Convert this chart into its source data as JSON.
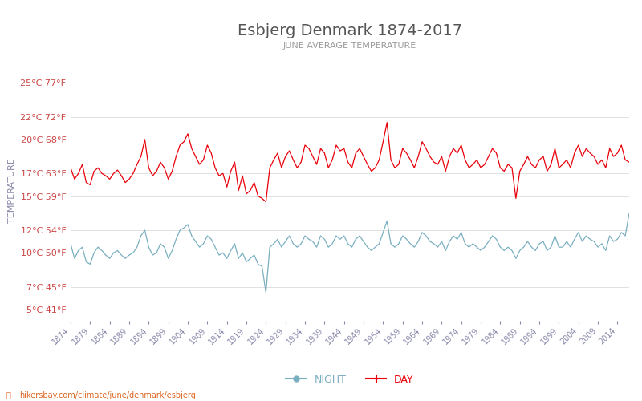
{
  "title": "Esbjerg Denmark 1874-2017",
  "subtitle": "JUNE AVERAGE TEMPERATURE",
  "ylabel": "TEMPERATURE",
  "url_text": "hikersbay.com/climate/june/denmark/esbjerg",
  "years": [
    1874,
    1875,
    1876,
    1877,
    1878,
    1879,
    1880,
    1881,
    1882,
    1883,
    1884,
    1885,
    1886,
    1887,
    1888,
    1889,
    1890,
    1891,
    1892,
    1893,
    1894,
    1895,
    1896,
    1897,
    1898,
    1899,
    1900,
    1901,
    1902,
    1903,
    1904,
    1905,
    1906,
    1907,
    1908,
    1909,
    1910,
    1911,
    1912,
    1913,
    1914,
    1915,
    1916,
    1917,
    1918,
    1919,
    1920,
    1921,
    1922,
    1923,
    1924,
    1925,
    1926,
    1927,
    1928,
    1929,
    1930,
    1931,
    1932,
    1933,
    1934,
    1935,
    1936,
    1937,
    1938,
    1939,
    1940,
    1941,
    1942,
    1943,
    1944,
    1945,
    1946,
    1947,
    1948,
    1949,
    1950,
    1951,
    1952,
    1953,
    1954,
    1955,
    1956,
    1957,
    1958,
    1959,
    1960,
    1961,
    1962,
    1963,
    1964,
    1965,
    1966,
    1967,
    1968,
    1969,
    1970,
    1971,
    1972,
    1973,
    1974,
    1975,
    1976,
    1977,
    1978,
    1979,
    1980,
    1981,
    1982,
    1983,
    1984,
    1985,
    1986,
    1987,
    1988,
    1989,
    1990,
    1991,
    1992,
    1993,
    1994,
    1995,
    1996,
    1997,
    1998,
    1999,
    2000,
    2001,
    2002,
    2003,
    2004,
    2005,
    2006,
    2007,
    2008,
    2009,
    2010,
    2011,
    2012,
    2013,
    2014,
    2015,
    2016,
    2017
  ],
  "day_temps": [
    17.5,
    16.5,
    17.0,
    17.8,
    16.2,
    16.0,
    17.2,
    17.5,
    17.0,
    16.8,
    16.5,
    17.0,
    17.3,
    16.8,
    16.2,
    16.5,
    17.0,
    17.8,
    18.5,
    20.0,
    17.5,
    16.8,
    17.2,
    18.0,
    17.5,
    16.5,
    17.2,
    18.5,
    19.5,
    19.8,
    20.5,
    19.2,
    18.5,
    17.8,
    18.2,
    19.5,
    18.8,
    17.5,
    16.8,
    17.0,
    15.8,
    17.2,
    18.0,
    15.5,
    16.8,
    15.2,
    15.5,
    16.2,
    15.0,
    14.8,
    14.5,
    17.5,
    18.2,
    18.8,
    17.5,
    18.5,
    19.0,
    18.2,
    17.5,
    18.0,
    19.5,
    19.2,
    18.5,
    17.8,
    19.2,
    18.8,
    17.5,
    18.2,
    19.5,
    19.0,
    19.2,
    18.0,
    17.5,
    18.8,
    19.2,
    18.5,
    17.8,
    17.2,
    17.5,
    18.2,
    19.8,
    21.5,
    18.2,
    17.5,
    17.8,
    19.2,
    18.8,
    18.2,
    17.5,
    18.5,
    19.8,
    19.2,
    18.5,
    18.0,
    17.8,
    18.5,
    17.2,
    18.5,
    19.2,
    18.8,
    19.5,
    18.2,
    17.5,
    17.8,
    18.2,
    17.5,
    17.8,
    18.5,
    19.2,
    18.8,
    17.5,
    17.2,
    17.8,
    17.5,
    14.8,
    17.2,
    17.8,
    18.5,
    17.8,
    17.5,
    18.2,
    18.5,
    17.2,
    17.8,
    19.2,
    17.5,
    17.8,
    18.2,
    17.5,
    18.8,
    19.5,
    18.5,
    19.2,
    18.8,
    18.5,
    17.8,
    18.2,
    17.5,
    19.2,
    18.5,
    18.8,
    19.5,
    18.2,
    18.0
  ],
  "night_temps": [
    10.8,
    9.5,
    10.2,
    10.5,
    9.2,
    9.0,
    10.0,
    10.5,
    10.2,
    9.8,
    9.5,
    10.0,
    10.2,
    9.8,
    9.5,
    9.8,
    10.0,
    10.5,
    11.5,
    12.0,
    10.5,
    9.8,
    10.0,
    10.8,
    10.5,
    9.5,
    10.2,
    11.2,
    12.0,
    12.2,
    12.5,
    11.5,
    11.0,
    10.5,
    10.8,
    11.5,
    11.2,
    10.5,
    9.8,
    10.0,
    9.5,
    10.2,
    10.8,
    9.5,
    10.0,
    9.2,
    9.5,
    9.8,
    9.0,
    8.8,
    6.5,
    10.5,
    10.8,
    11.2,
    10.5,
    11.0,
    11.5,
    10.8,
    10.5,
    10.8,
    11.5,
    11.2,
    11.0,
    10.5,
    11.5,
    11.2,
    10.5,
    10.8,
    11.5,
    11.2,
    11.5,
    10.8,
    10.5,
    11.2,
    11.5,
    11.0,
    10.5,
    10.2,
    10.5,
    10.8,
    11.8,
    12.8,
    10.8,
    10.5,
    10.8,
    11.5,
    11.2,
    10.8,
    10.5,
    11.0,
    11.8,
    11.5,
    11.0,
    10.8,
    10.5,
    11.0,
    10.2,
    11.0,
    11.5,
    11.2,
    11.8,
    10.8,
    10.5,
    10.8,
    10.5,
    10.2,
    10.5,
    11.0,
    11.5,
    11.2,
    10.5,
    10.2,
    10.5,
    10.2,
    9.5,
    10.2,
    10.5,
    11.0,
    10.5,
    10.2,
    10.8,
    11.0,
    10.2,
    10.5,
    11.5,
    10.5,
    10.5,
    11.0,
    10.5,
    11.2,
    11.8,
    11.0,
    11.5,
    11.2,
    11.0,
    10.5,
    10.8,
    10.2,
    11.5,
    11.0,
    11.2,
    11.8,
    11.5,
    13.5
  ],
  "yticks_c": [
    5,
    7,
    10,
    12,
    15,
    17,
    20,
    22,
    25
  ],
  "yticks_f": [
    41,
    45,
    50,
    54,
    59,
    63,
    68,
    72,
    77
  ],
  "ylim": [
    4,
    27
  ],
  "xlim": [
    1874,
    2017
  ],
  "day_color": "#e8000a",
  "night_color": "#7aafc0",
  "title_color": "#555555",
  "subtitle_color": "#999999",
  "label_color": "#cc4444",
  "axis_label_color": "#8888aa",
  "bg_color": "#ffffff",
  "grid_color": "#e0e0e0",
  "xtick_color": "#8888aa",
  "legend_day_color": "#e8000a",
  "legend_night_color": "#7aafc0",
  "url_color": "#dd6622",
  "title_fontsize": 14,
  "subtitle_fontsize": 8,
  "ytick_fontsize": 8,
  "xtick_fontsize": 7,
  "ylabel_fontsize": 8
}
